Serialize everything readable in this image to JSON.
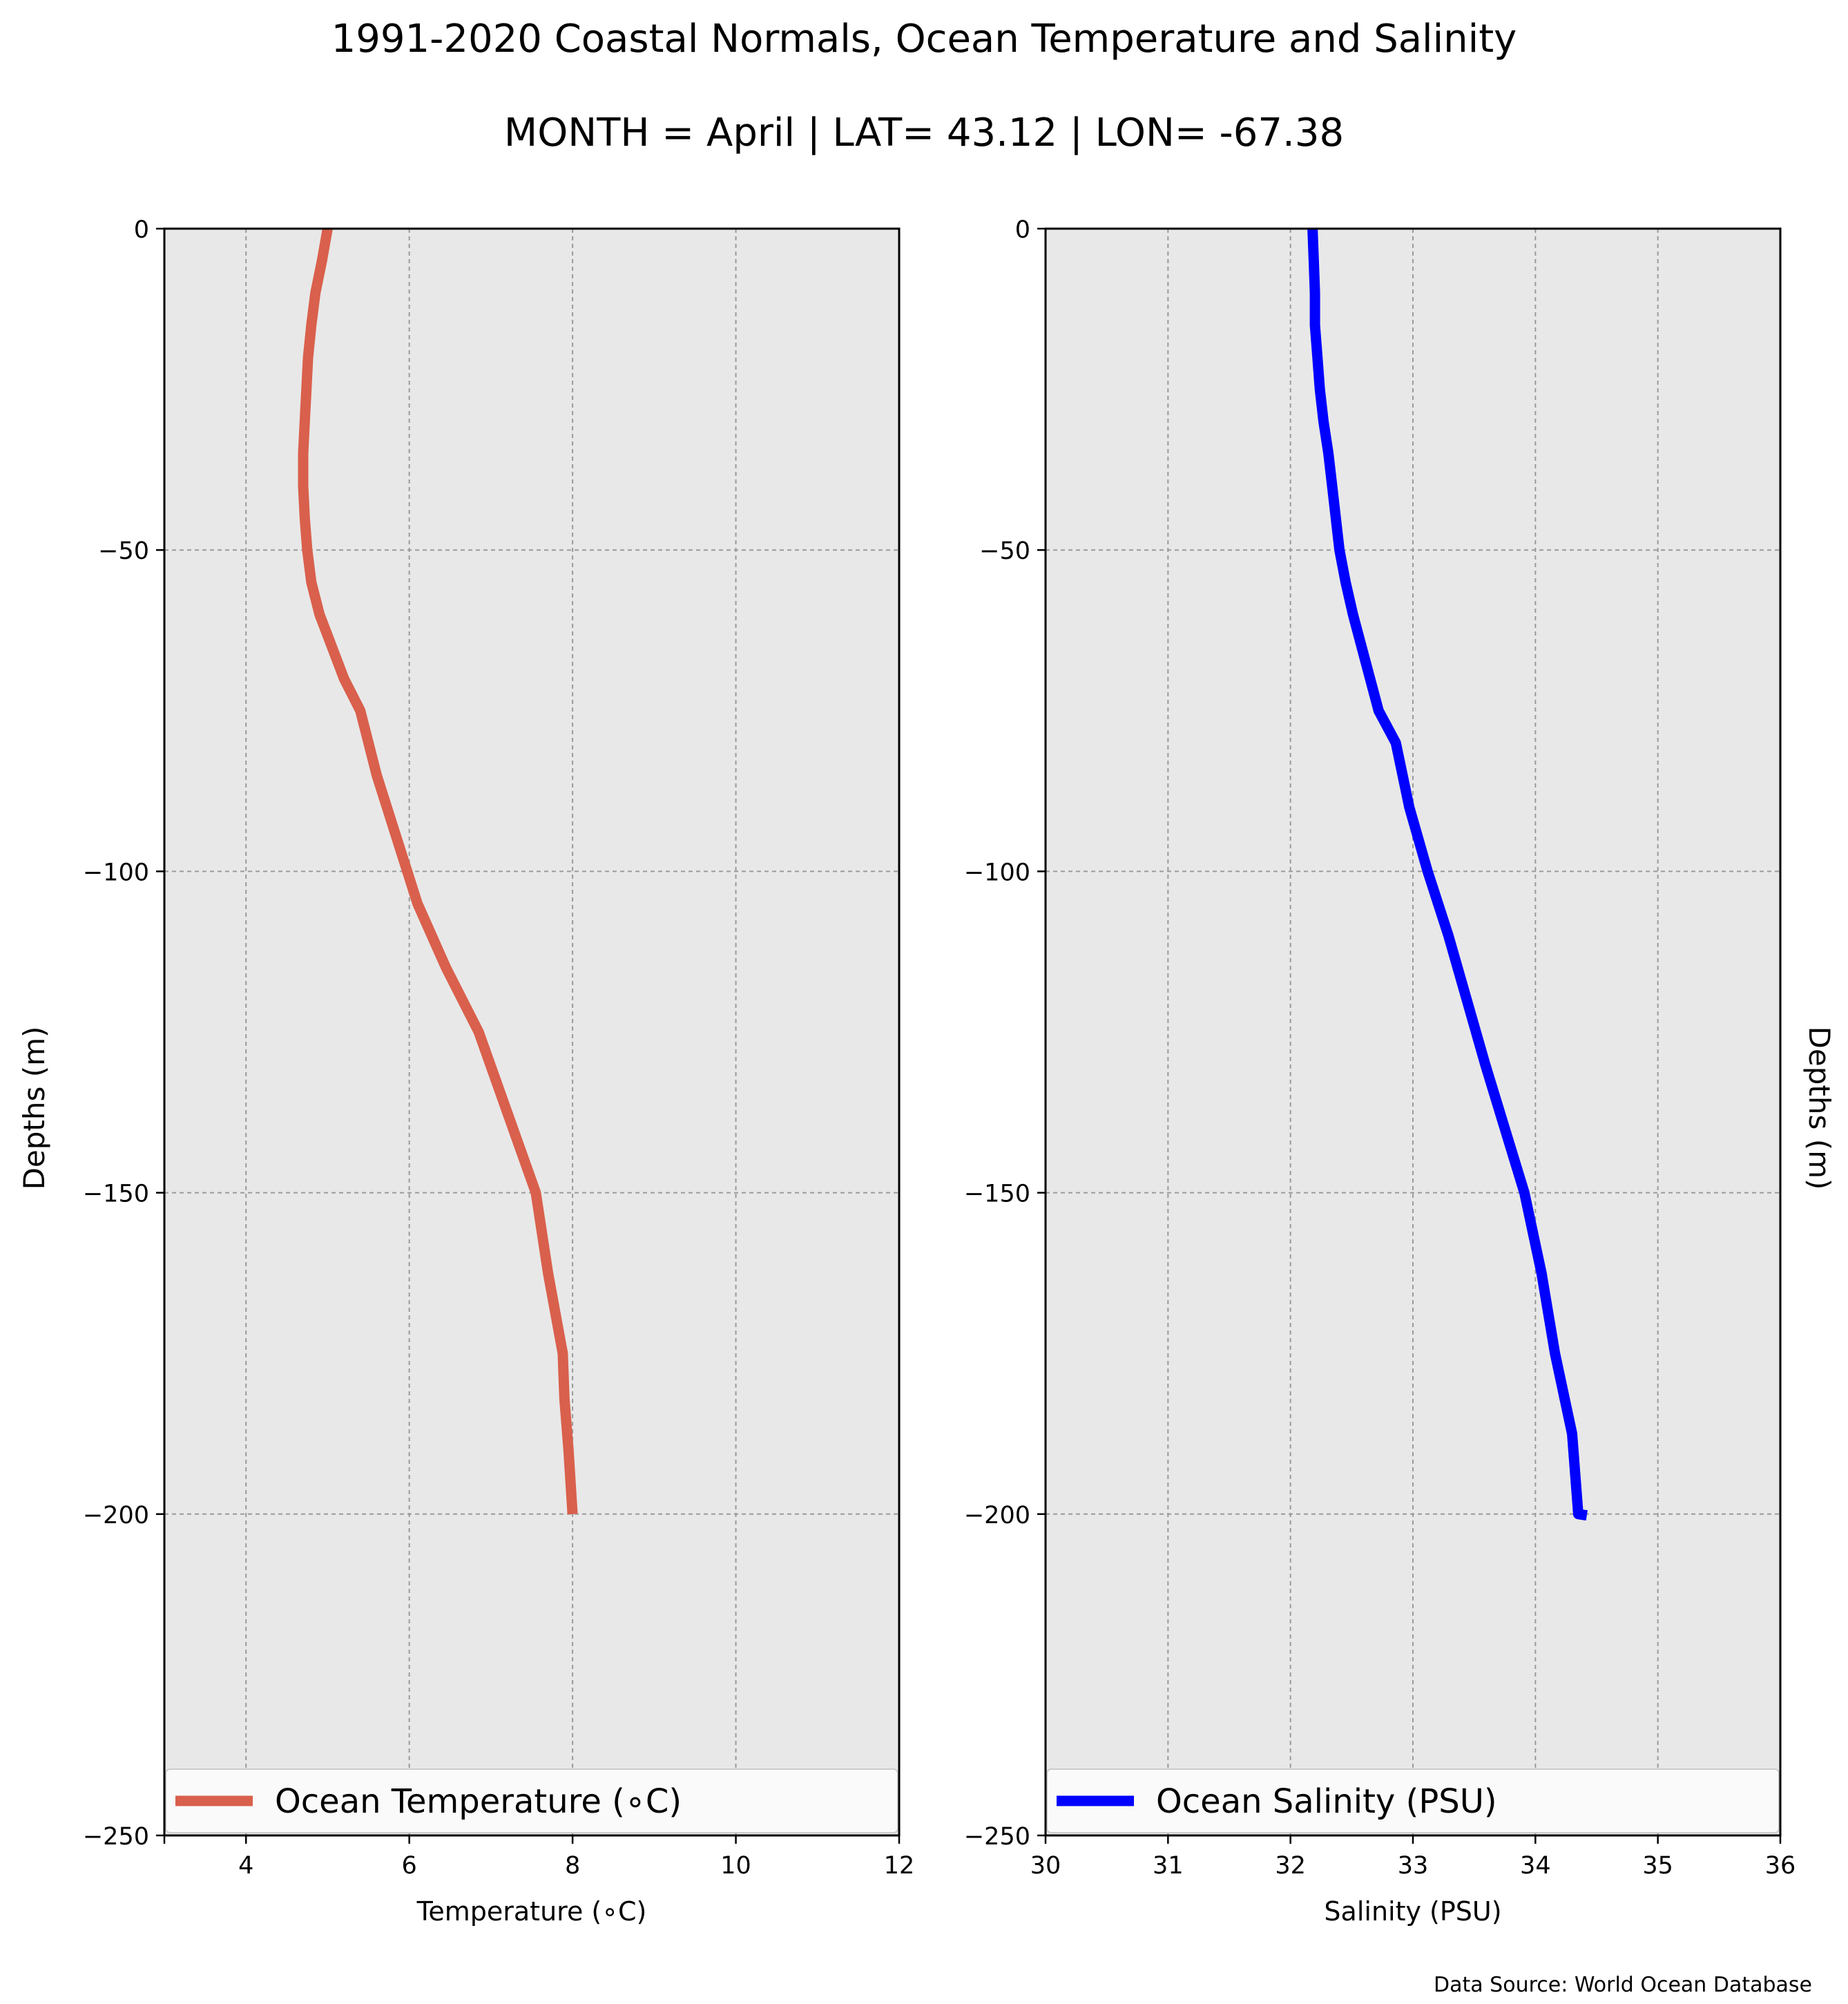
{
  "title": "1991-2020 Coastal Normals, Ocean Temperature and Salinity",
  "subtitle": "MONTH = April | LAT= 43.12 | LON= -67.38",
  "source": "Data Source: World Ocean Database",
  "colors": {
    "temperature": "#d9604c",
    "salinity": "#0000ff",
    "plot_bg": "#e8e8e8"
  },
  "chart_data": [
    {
      "type": "line",
      "xlabel": "Temperature ($^\\circ$C)",
      "xlabel_display": "Temperature (∘C)",
      "ylabel": "Depths (m)",
      "xlim": [
        3,
        12
      ],
      "ylim": [
        -250,
        0
      ],
      "xticks": [
        "4",
        "6",
        "8",
        "10",
        "12"
      ],
      "xtick_values": [
        4,
        6,
        8,
        10,
        12
      ],
      "yticks": [
        "0",
        "−50",
        "−100",
        "−150",
        "−200",
        "−250"
      ],
      "ytick_values": [
        0,
        -50,
        -100,
        -150,
        -200,
        -250
      ],
      "grid": true,
      "legend_position": "bottom",
      "series": [
        {
          "name": "Ocean Temperature (∘C)",
          "x": [
            5.0,
            4.93,
            4.85,
            4.8,
            4.76,
            4.74,
            4.72,
            4.7,
            4.7,
            4.72,
            4.75,
            4.8,
            4.9,
            5.05,
            5.2,
            5.4,
            5.6,
            5.85,
            6.1,
            6.45,
            6.85,
            7.2,
            7.55,
            7.7,
            7.88,
            7.9,
            7.95,
            8.0
          ],
          "y": [
            0,
            -5,
            -10,
            -15,
            -20,
            -25,
            -30,
            -35,
            -40,
            -45,
            -50,
            -55,
            -60,
            -65,
            -70,
            -75,
            -85,
            -95,
            -105,
            -115,
            -125,
            -137.5,
            -150,
            -162.5,
            -175,
            -182,
            -190,
            -200
          ]
        }
      ]
    },
    {
      "type": "line",
      "xlabel": "Salinity (PSU)",
      "ylabel": "Depths (m)",
      "ylabel_position": "right",
      "xlim": [
        30,
        36
      ],
      "ylim": [
        -250,
        0
      ],
      "xticks": [
        "30",
        "31",
        "32",
        "33",
        "34",
        "35",
        "36"
      ],
      "xtick_values": [
        30,
        31,
        32,
        33,
        34,
        35,
        36
      ],
      "yticks": [
        "0",
        "−50",
        "−100",
        "−150",
        "−200",
        "−250"
      ],
      "ytick_values": [
        0,
        -50,
        -100,
        -150,
        -200,
        -250
      ],
      "grid": true,
      "legend_position": "bottom",
      "series": [
        {
          "name": "Ocean Salinity (PSU)",
          "x": [
            32.18,
            32.19,
            32.2,
            32.2,
            32.22,
            32.24,
            32.27,
            32.31,
            32.34,
            32.37,
            32.4,
            32.45,
            32.51,
            32.58,
            32.65,
            32.72,
            32.86,
            32.97,
            33.12,
            33.29,
            33.44,
            33.59,
            33.75,
            33.91,
            34.05,
            34.16,
            34.3,
            34.35,
            34.42
          ],
          "y": [
            0,
            -5,
            -10,
            -15,
            -20,
            -25,
            -30,
            -35,
            -40,
            -45,
            -50,
            -55,
            -60,
            -65,
            -70,
            -75,
            -80,
            -90,
            -100,
            -110,
            -120,
            -130,
            -140,
            -150,
            -162.5,
            -175,
            -187.5,
            -200,
            -200.2
          ]
        }
      ]
    }
  ]
}
